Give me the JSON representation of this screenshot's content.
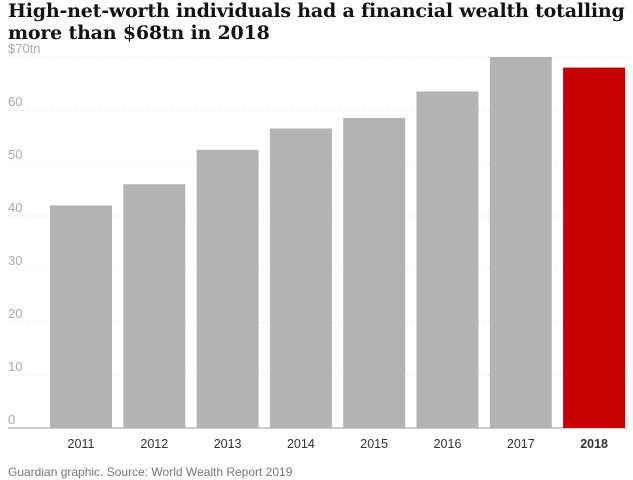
{
  "chart_data": {
    "type": "bar",
    "title": "High-net-worth individuals had a financial wealth totalling more than $68tn in 2018",
    "categories": [
      "2011",
      "2012",
      "2013",
      "2014",
      "2015",
      "2016",
      "2017",
      "2018"
    ],
    "values": [
      42,
      46,
      52.5,
      56.5,
      58.5,
      63.5,
      70,
      68
    ],
    "y_ticks": [
      "0",
      "10",
      "20",
      "30",
      "40",
      "50",
      "60",
      "$70tn"
    ],
    "ylim": [
      0,
      70
    ],
    "grid": "dotted horizontal",
    "highlight_category": "2018",
    "colors": {
      "bar": "#b3b3b3",
      "highlight": "#c70000",
      "grid": "#dcdcdc",
      "tick_text": "#a8a8a8",
      "label_text": "#333333"
    },
    "source": "Guardian graphic. Source: World Wealth Report 2019"
  }
}
